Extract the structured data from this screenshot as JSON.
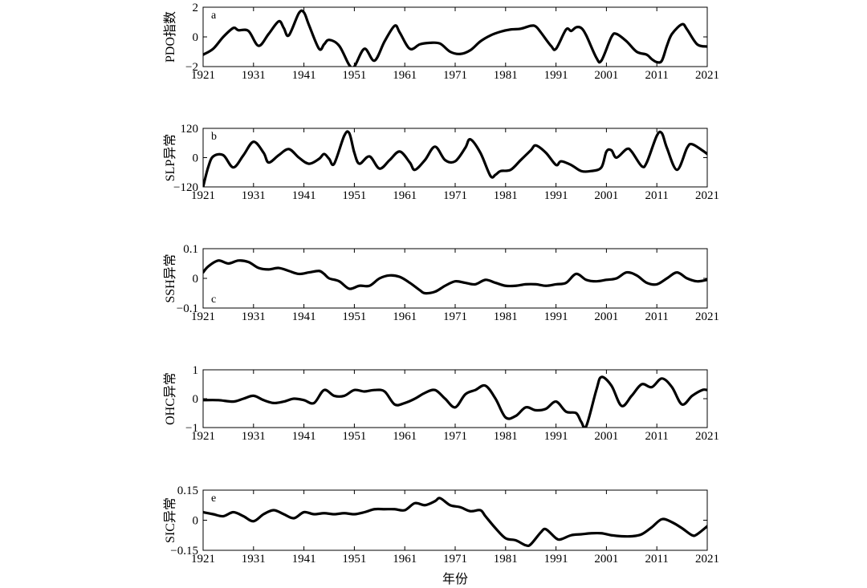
{
  "chart_data": [
    {
      "type": "line",
      "panel": "a",
      "ylabel": "PDO指数",
      "xlim": [
        1921,
        2021
      ],
      "ylim": [
        -2,
        2
      ],
      "x_ticks": [
        1921,
        1931,
        1941,
        1951,
        1961,
        1971,
        1981,
        1991,
        2001,
        2011,
        2021
      ],
      "y_ticks": [
        -2,
        0,
        2
      ],
      "y_tick_labels": [
        "−2",
        "0",
        "2"
      ],
      "series": [
        {
          "x": [
            1921,
            1923,
            1925,
            1927,
            1928,
            1930,
            1932,
            1934,
            1936,
            1937,
            1938,
            1940,
            1941,
            1942,
            1944,
            1945,
            1946,
            1948,
            1950,
            1951,
            1953,
            1955,
            1957,
            1959,
            1960,
            1962,
            1964,
            1966,
            1968,
            1970,
            1972,
            1974,
            1976,
            1978,
            1980,
            1982,
            1984,
            1986,
            1987,
            1988,
            1990,
            1991,
            1993,
            1994,
            1995,
            1996,
            1997,
            1999,
            2000,
            2002,
            2003,
            2005,
            2007,
            2009,
            2010,
            2011,
            2012,
            2013,
            2014,
            2016,
            2017,
            2019,
            2021
          ],
          "y": [
            -1.2,
            -0.8,
            0.0,
            0.6,
            0.45,
            0.4,
            -0.6,
            0.2,
            1.05,
            0.6,
            0.1,
            1.6,
            1.65,
            0.8,
            -0.8,
            -0.5,
            -0.2,
            -0.6,
            -1.9,
            -2.0,
            -0.8,
            -1.6,
            -0.3,
            0.75,
            0.3,
            -0.8,
            -0.5,
            -0.4,
            -0.45,
            -1.0,
            -1.15,
            -0.9,
            -0.3,
            0.1,
            0.35,
            0.5,
            0.55,
            0.75,
            0.7,
            0.3,
            -0.6,
            -0.8,
            0.5,
            0.4,
            0.65,
            0.6,
            0.1,
            -1.4,
            -1.6,
            0.0,
            0.2,
            -0.3,
            -1.0,
            -1.2,
            -1.5,
            -1.7,
            -1.6,
            -0.6,
            0.2,
            0.85,
            0.5,
            -0.5,
            -0.65
          ]
        }
      ]
    },
    {
      "type": "line",
      "panel": "b",
      "ylabel": "SLP异常",
      "xlim": [
        1921,
        2021
      ],
      "ylim": [
        -120,
        120
      ],
      "x_ticks": [
        1921,
        1931,
        1941,
        1951,
        1961,
        1971,
        1981,
        1991,
        2001,
        2011,
        2021
      ],
      "y_ticks": [
        -120,
        0,
        120
      ],
      "y_tick_labels": [
        "−120",
        "0",
        "120"
      ],
      "series": [
        {
          "x": [
            1921,
            1922,
            1923,
            1925,
            1927,
            1929,
            1931,
            1933,
            1934,
            1936,
            1938,
            1940,
            1942,
            1944,
            1945,
            1946,
            1947,
            1949,
            1950,
            1951,
            1952,
            1954,
            1956,
            1958,
            1960,
            1962,
            1963,
            1965,
            1967,
            1969,
            1971,
            1973,
            1974,
            1976,
            1978,
            1979,
            1980,
            1982,
            1984,
            1986,
            1987,
            1989,
            1991,
            1992,
            1994,
            1996,
            1998,
            2000,
            2001,
            2002,
            2003,
            2005,
            2006,
            2008,
            2009,
            2011,
            2012,
            2013,
            2015,
            2017,
            2018,
            2020,
            2021
          ],
          "y": [
            -120,
            -40,
            5,
            10,
            -40,
            10,
            65,
            20,
            -20,
            10,
            35,
            0,
            -25,
            -5,
            15,
            -5,
            -25,
            90,
            100,
            20,
            -25,
            5,
            -45,
            -10,
            25,
            -20,
            -50,
            -10,
            45,
            -10,
            -15,
            40,
            75,
            20,
            -75,
            -70,
            -55,
            -50,
            -10,
            30,
            50,
            20,
            -30,
            -15,
            -30,
            -55,
            -55,
            -40,
            25,
            30,
            0,
            35,
            25,
            -35,
            -20,
            90,
            100,
            40,
            -50,
            40,
            55,
            30,
            15
          ]
        }
      ]
    },
    {
      "type": "line",
      "panel": "c",
      "ylabel": "SSH异常",
      "xlim": [
        1921,
        2021
      ],
      "ylim": [
        -0.1,
        0.1
      ],
      "x_ticks": [
        1921,
        1931,
        1941,
        1951,
        1961,
        1971,
        1981,
        1991,
        2001,
        2011,
        2021
      ],
      "y_ticks": [
        -0.1,
        0,
        0.1
      ],
      "y_tick_labels": [
        "−0.1",
        "0",
        "0.1"
      ],
      "series": [
        {
          "x": [
            1921,
            1922,
            1924,
            1926,
            1928,
            1930,
            1932,
            1934,
            1936,
            1938,
            1940,
            1942,
            1944,
            1945,
            1946,
            1948,
            1950,
            1952,
            1954,
            1956,
            1958,
            1960,
            1962,
            1964,
            1965,
            1967,
            1969,
            1971,
            1973,
            1975,
            1977,
            1979,
            1981,
            1983,
            1985,
            1987,
            1989,
            1991,
            1993,
            1995,
            1997,
            1999,
            2001,
            2003,
            2005,
            2007,
            2009,
            2011,
            2013,
            2015,
            2017,
            2019,
            2021
          ],
          "y": [
            0.02,
            0.04,
            0.06,
            0.05,
            0.06,
            0.055,
            0.035,
            0.03,
            0.035,
            0.025,
            0.015,
            0.02,
            0.025,
            0.015,
            0.0,
            -0.01,
            -0.035,
            -0.025,
            -0.025,
            0.0,
            0.01,
            0.005,
            -0.015,
            -0.04,
            -0.05,
            -0.045,
            -0.025,
            -0.01,
            -0.015,
            -0.02,
            -0.005,
            -0.015,
            -0.025,
            -0.025,
            -0.02,
            -0.02,
            -0.025,
            -0.02,
            -0.015,
            0.015,
            -0.005,
            -0.01,
            -0.005,
            0.0,
            0.02,
            0.01,
            -0.015,
            -0.02,
            0.0,
            0.02,
            0.0,
            -0.01,
            -0.005
          ]
        }
      ]
    },
    {
      "type": "line",
      "panel": "",
      "ylabel": "OHC异常",
      "xlim": [
        1921,
        2021
      ],
      "ylim": [
        -1,
        1
      ],
      "x_ticks": [
        1921,
        1931,
        1941,
        1951,
        1961,
        1971,
        1981,
        1991,
        2001,
        2011,
        2021
      ],
      "y_ticks": [
        -1,
        0,
        1
      ],
      "y_tick_labels": [
        "−1",
        "0",
        "1"
      ],
      "series": [
        {
          "x": [
            1921,
            1924,
            1927,
            1929,
            1931,
            1933,
            1935,
            1937,
            1939,
            1941,
            1943,
            1945,
            1947,
            1949,
            1951,
            1953,
            1955,
            1957,
            1959,
            1961,
            1963,
            1965,
            1967,
            1969,
            1971,
            1973,
            1975,
            1977,
            1979,
            1981,
            1983,
            1985,
            1987,
            1989,
            1991,
            1993,
            1995,
            1996,
            1997,
            1999,
            2000,
            2002,
            2004,
            2006,
            2008,
            2010,
            2012,
            2014,
            2016,
            2018,
            2020,
            2021
          ],
          "y": [
            -0.05,
            -0.05,
            -0.1,
            0.0,
            0.1,
            -0.05,
            -0.15,
            -0.1,
            0.0,
            -0.05,
            -0.15,
            0.3,
            0.1,
            0.1,
            0.3,
            0.25,
            0.3,
            0.25,
            -0.2,
            -0.15,
            0.0,
            0.2,
            0.3,
            0.0,
            -0.3,
            0.15,
            0.3,
            0.45,
            0.0,
            -0.65,
            -0.6,
            -0.3,
            -0.4,
            -0.35,
            -0.1,
            -0.45,
            -0.5,
            -0.8,
            -0.95,
            0.3,
            0.75,
            0.45,
            -0.25,
            0.1,
            0.5,
            0.4,
            0.7,
            0.4,
            -0.2,
            0.1,
            0.3,
            0.3
          ]
        }
      ]
    },
    {
      "type": "line",
      "panel": "e",
      "ylabel": "SIC异常",
      "xlabel": "年份",
      "xlim": [
        1921,
        2021
      ],
      "ylim": [
        -0.15,
        0.15
      ],
      "x_ticks": [
        1921,
        1931,
        1941,
        1951,
        1961,
        1971,
        1981,
        1991,
        2001,
        2011,
        2021
      ],
      "y_ticks": [
        -0.15,
        0,
        0.15
      ],
      "y_tick_labels": [
        "−0.15",
        "0",
        "0.15"
      ],
      "series": [
        {
          "x": [
            1921,
            1923,
            1925,
            1927,
            1929,
            1931,
            1933,
            1935,
            1937,
            1939,
            1941,
            1943,
            1945,
            1947,
            1949,
            1951,
            1953,
            1955,
            1957,
            1959,
            1961,
            1963,
            1965,
            1967,
            1968,
            1970,
            1972,
            1974,
            1976,
            1977,
            1979,
            1981,
            1983,
            1985,
            1986,
            1988,
            1989,
            1991,
            1992,
            1994,
            1996,
            1998,
            2000,
            2002,
            2004,
            2006,
            2008,
            2010,
            2012,
            2014,
            2016,
            2018,
            2019,
            2021
          ],
          "y": [
            0.04,
            0.03,
            0.02,
            0.04,
            0.02,
            -0.005,
            0.03,
            0.05,
            0.03,
            0.01,
            0.04,
            0.03,
            0.035,
            0.03,
            0.035,
            0.03,
            0.04,
            0.055,
            0.055,
            0.055,
            0.05,
            0.085,
            0.075,
            0.095,
            0.11,
            0.075,
            0.065,
            0.045,
            0.05,
            0.02,
            -0.04,
            -0.09,
            -0.1,
            -0.125,
            -0.12,
            -0.06,
            -0.045,
            -0.09,
            -0.095,
            -0.075,
            -0.07,
            -0.065,
            -0.065,
            -0.075,
            -0.08,
            -0.08,
            -0.07,
            -0.035,
            0.005,
            -0.01,
            -0.04,
            -0.075,
            -0.07,
            -0.03
          ]
        }
      ]
    }
  ]
}
